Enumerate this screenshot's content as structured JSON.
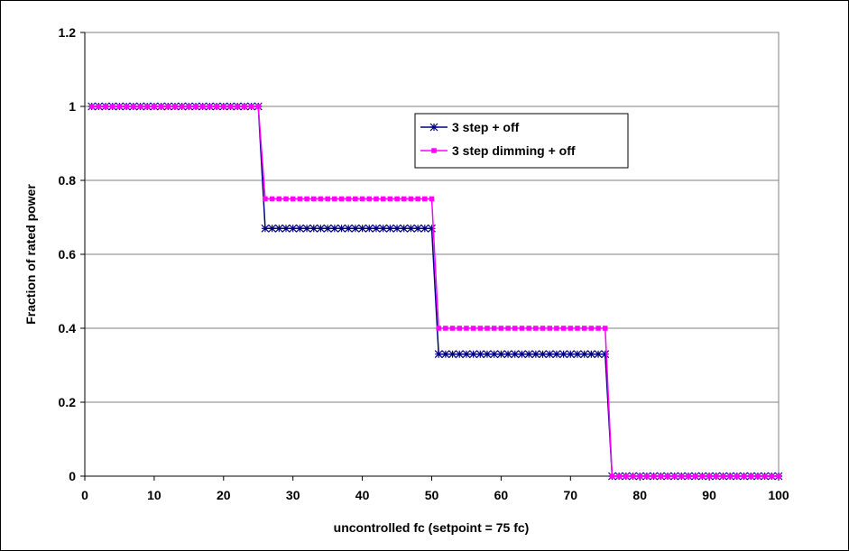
{
  "chart_data": {
    "type": "line",
    "title": "",
    "xlabel": "uncontrolled fc (setpoint = 75 fc)",
    "ylabel": "Fraction of rated power",
    "xlim": [
      0,
      100
    ],
    "ylim": [
      0,
      1.2
    ],
    "x_ticks": [
      "0",
      "10",
      "20",
      "30",
      "40",
      "50",
      "60",
      "70",
      "80",
      "90",
      "100"
    ],
    "y_ticks": [
      "0",
      "0.2",
      "0.4",
      "0.6",
      "0.8",
      "1",
      "1.2"
    ],
    "grid": "horizontal",
    "legend_position": "upper-middle-right",
    "x": [
      1,
      2,
      3,
      4,
      5,
      6,
      7,
      8,
      9,
      10,
      11,
      12,
      13,
      14,
      15,
      16,
      17,
      18,
      19,
      20,
      21,
      22,
      23,
      24,
      25,
      26,
      27,
      28,
      29,
      30,
      31,
      32,
      33,
      34,
      35,
      36,
      37,
      38,
      39,
      40,
      41,
      42,
      43,
      44,
      45,
      46,
      47,
      48,
      49,
      50,
      51,
      52,
      53,
      54,
      55,
      56,
      57,
      58,
      59,
      60,
      61,
      62,
      63,
      64,
      65,
      66,
      67,
      68,
      69,
      70,
      71,
      72,
      73,
      74,
      75,
      76,
      77,
      78,
      79,
      80,
      81,
      82,
      83,
      84,
      85,
      86,
      87,
      88,
      89,
      90,
      91,
      92,
      93,
      94,
      95,
      96,
      97,
      98,
      99,
      100
    ],
    "series": [
      {
        "name": "3 step + off",
        "color": "#000080",
        "marker": "asterisk",
        "values": [
          1,
          1,
          1,
          1,
          1,
          1,
          1,
          1,
          1,
          1,
          1,
          1,
          1,
          1,
          1,
          1,
          1,
          1,
          1,
          1,
          1,
          1,
          1,
          1,
          1,
          0.67,
          0.67,
          0.67,
          0.67,
          0.67,
          0.67,
          0.67,
          0.67,
          0.67,
          0.67,
          0.67,
          0.67,
          0.67,
          0.67,
          0.67,
          0.67,
          0.67,
          0.67,
          0.67,
          0.67,
          0.67,
          0.67,
          0.67,
          0.67,
          0.67,
          0.33,
          0.33,
          0.33,
          0.33,
          0.33,
          0.33,
          0.33,
          0.33,
          0.33,
          0.33,
          0.33,
          0.33,
          0.33,
          0.33,
          0.33,
          0.33,
          0.33,
          0.33,
          0.33,
          0.33,
          0.33,
          0.33,
          0.33,
          0.33,
          0.33,
          0,
          0,
          0,
          0,
          0,
          0,
          0,
          0,
          0,
          0,
          0,
          0,
          0,
          0,
          0,
          0,
          0,
          0,
          0,
          0,
          0,
          0,
          0,
          0,
          0
        ]
      },
      {
        "name": "3 step dimming + off",
        "color": "#FF00FF",
        "marker": "square",
        "values": [
          1,
          1,
          1,
          1,
          1,
          1,
          1,
          1,
          1,
          1,
          1,
          1,
          1,
          1,
          1,
          1,
          1,
          1,
          1,
          1,
          1,
          1,
          1,
          1,
          1,
          0.75,
          0.75,
          0.75,
          0.75,
          0.75,
          0.75,
          0.75,
          0.75,
          0.75,
          0.75,
          0.75,
          0.75,
          0.75,
          0.75,
          0.75,
          0.75,
          0.75,
          0.75,
          0.75,
          0.75,
          0.75,
          0.75,
          0.75,
          0.75,
          0.75,
          0.4,
          0.4,
          0.4,
          0.4,
          0.4,
          0.4,
          0.4,
          0.4,
          0.4,
          0.4,
          0.4,
          0.4,
          0.4,
          0.4,
          0.4,
          0.4,
          0.4,
          0.4,
          0.4,
          0.4,
          0.4,
          0.4,
          0.4,
          0.4,
          0.4,
          0,
          0,
          0,
          0,
          0,
          0,
          0,
          0,
          0,
          0,
          0,
          0,
          0,
          0,
          0,
          0,
          0,
          0,
          0,
          0,
          0,
          0,
          0,
          0,
          0
        ]
      }
    ]
  }
}
